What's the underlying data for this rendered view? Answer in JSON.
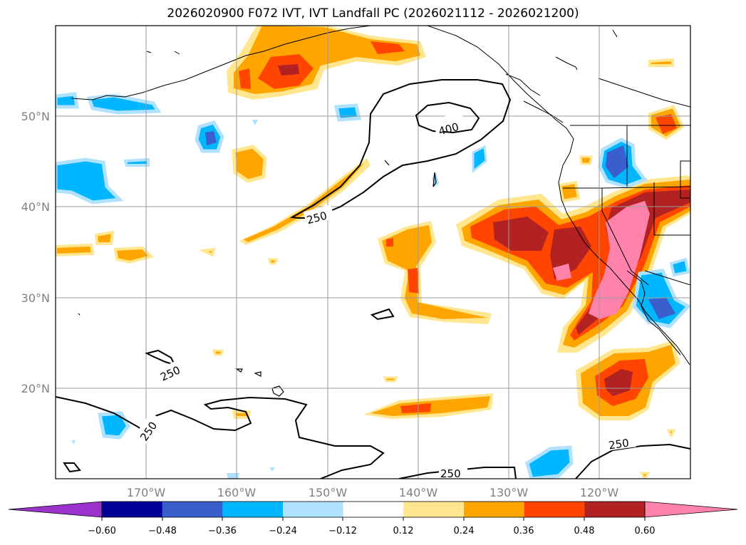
{
  "title": "2026020900 F072 IVT, IVT Landfall PC (2026021112 - 2026021200)",
  "map": {
    "lon_labels": [
      "170°W",
      "160°W",
      "150°W",
      "140°W",
      "130°W",
      "120°W"
    ],
    "lat_labels": [
      "50°N",
      "40°N",
      "30°N",
      "20°N"
    ],
    "contour_labels": [
      "400",
      "250",
      "250",
      "250",
      "250",
      "250"
    ]
  },
  "colorbar": {
    "labels": [
      "−0.60",
      "−0.48",
      "−0.36",
      "−0.24",
      "−0.12",
      "0.12",
      "0.24",
      "0.36",
      "0.48",
      "0.60"
    ],
    "colors": [
      "#9933cc",
      "#000099",
      "#3a5fcd",
      "#00b7ff",
      "#b0e2ff",
      "#ffffff",
      "#ffe68f",
      "#ffa500",
      "#ff4500",
      "#b22222",
      "#ff82ab"
    ]
  }
}
